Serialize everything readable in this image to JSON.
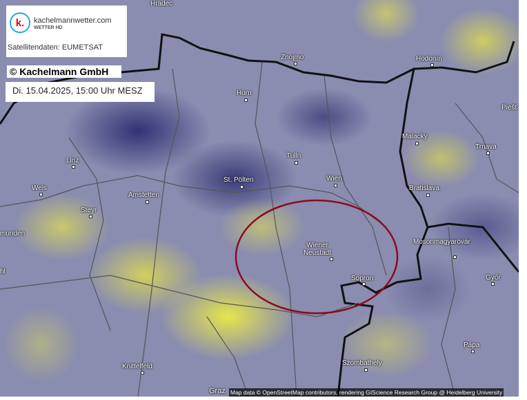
{
  "branding": {
    "site": "kachelmannwetter.com",
    "sub": "WETTER HD",
    "logo_letter": "k.",
    "source": "Satellitendaten: EUMETSAT",
    "copyright": "© Kachelmann GmbH"
  },
  "timestamp": "Di. 15.04.2025, 15:00 Uhr MESZ",
  "attribution": "Map data © OpenStreetMap contributors, rendering GIScience Research Group @ Heidelberg University",
  "colors": {
    "highlight_ellipse": "#8b0a1e",
    "border": "#111111"
  },
  "cities": [
    {
      "name": "Hradec"
    },
    {
      "name": "Znojmo"
    },
    {
      "name": "Hodonín"
    },
    {
      "name": "Piešť"
    },
    {
      "name": "Horn"
    },
    {
      "name": "Malacky"
    },
    {
      "name": "Trnava"
    },
    {
      "name": "Linz"
    },
    {
      "name": "Tulln"
    },
    {
      "name": "Wien"
    },
    {
      "name": "St. Pölten"
    },
    {
      "name": "Wels"
    },
    {
      "name": "Amstetten"
    },
    {
      "name": "Bratislava"
    },
    {
      "name": "Steyr"
    },
    {
      "name": "munden"
    },
    {
      "name": "Wiener\nNeustadt"
    },
    {
      "name": "Mosonmagyaróvár"
    },
    {
      "name": "Sopron"
    },
    {
      "name": "Győr"
    },
    {
      "name": "Pápa"
    },
    {
      "name": "Szombathely"
    },
    {
      "name": "Knittelfeld"
    },
    {
      "name": "Graz"
    },
    {
      "name": "hl"
    }
  ]
}
